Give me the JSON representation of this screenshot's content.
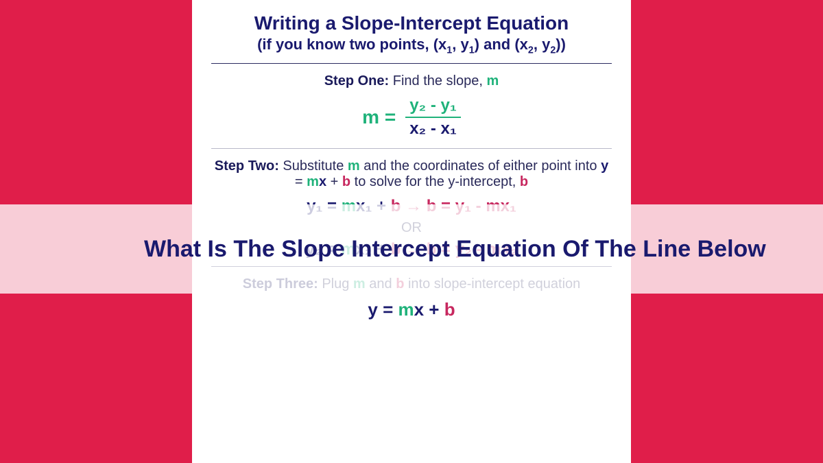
{
  "colors": {
    "page_bg": "#e01e4a",
    "card_bg": "#ffffff",
    "navy": "#1a1a6e",
    "body_text": "#2a2a5a",
    "green": "#1fb27a",
    "pink": "#c7285f",
    "hr": "#2a2a60",
    "hr_light": "#b8b8c8",
    "banner_bg": "rgba(255,255,255,0.78)"
  },
  "typography": {
    "title_size": 28,
    "subtitle_size": 22,
    "step_size": 20,
    "formula_size": 28,
    "eq_size": 24,
    "final_size": 26,
    "banner_size": 34,
    "font_family": "Arial"
  },
  "card": {
    "title": "Writing a Slope-Intercept Equation",
    "subtitle_prefix": "(if you know two points, (x",
    "subtitle_mid": ", y",
    "subtitle_mid2": ") and (x",
    "subtitle_mid3": ", y",
    "subtitle_suffix": "))",
    "sub1": "1",
    "sub2": "2"
  },
  "step1": {
    "label": "Step One:",
    "text": " Find the slope, ",
    "m": "m",
    "formula_lhs": "m =",
    "numerator": "y₂ - y₁",
    "denominator": "x₂ - x₁"
  },
  "step2": {
    "label": "Step Two:",
    "text1": " Substitute ",
    "m": "m",
    "text2": " and the coordinates of either point into ",
    "y_eq": "y",
    "eq_sign": " = ",
    "mx": "m",
    "x": "x",
    "plus": " + ",
    "b": "b",
    "text3": " to solve for the y-intercept, ",
    "b2": "b",
    "eq1_left_y": "y₁",
    "eq1_eq": " = ",
    "eq1_m": "m",
    "eq1_x": "x₁",
    "eq1_plus": " + ",
    "eq1_b": "b",
    "arrow": " → ",
    "eq1_right": "b = y₁ - mx₁",
    "or": "OR",
    "eq2_left_y": "y₂",
    "eq2_x": "x₂",
    "eq2_right": "b = y₂ - mx₂"
  },
  "step3": {
    "label": "Step Three:",
    "text1": " Plug ",
    "m": "m",
    "text2": " and ",
    "b": "b",
    "text3": " into slope-intercept equation",
    "final_y": "y = ",
    "final_m": "m",
    "final_x": "x",
    "final_plus": " + ",
    "final_b": "b"
  },
  "banner": {
    "text": "What Is The Slope Intercept Equation Of The Line Below"
  }
}
